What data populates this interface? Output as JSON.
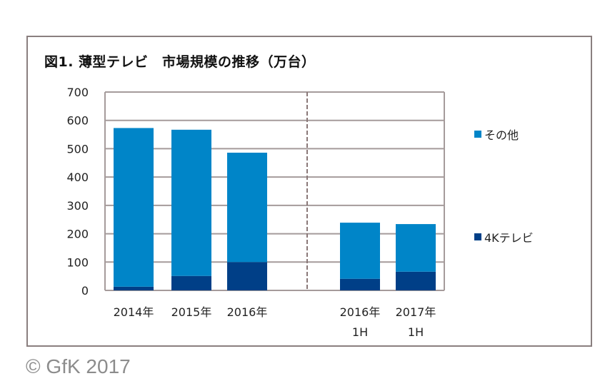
{
  "chart_data": {
    "type": "bar",
    "stacked": true,
    "title": "図1. 薄型テレビ　市場規模の推移（万台）",
    "categories": [
      [
        "2014年"
      ],
      [
        "2015年"
      ],
      [
        "2016年"
      ],
      [
        "2016年",
        "1H"
      ],
      [
        "2017年",
        "1H"
      ]
    ],
    "series": [
      {
        "name": "4Kテレビ",
        "color": "#003f87",
        "values": [
          13,
          51,
          100,
          41,
          66
        ]
      },
      {
        "name": "その他",
        "color": "#0085c8",
        "values": [
          560,
          516,
          386,
          198,
          168
        ]
      }
    ],
    "ylim": [
      0,
      700
    ],
    "yticks": [
      0,
      100,
      200,
      300,
      400,
      500,
      600,
      700
    ],
    "grid": true,
    "legend": "right",
    "divider_after_category": 2
  },
  "copyright": "© GfK 2017"
}
